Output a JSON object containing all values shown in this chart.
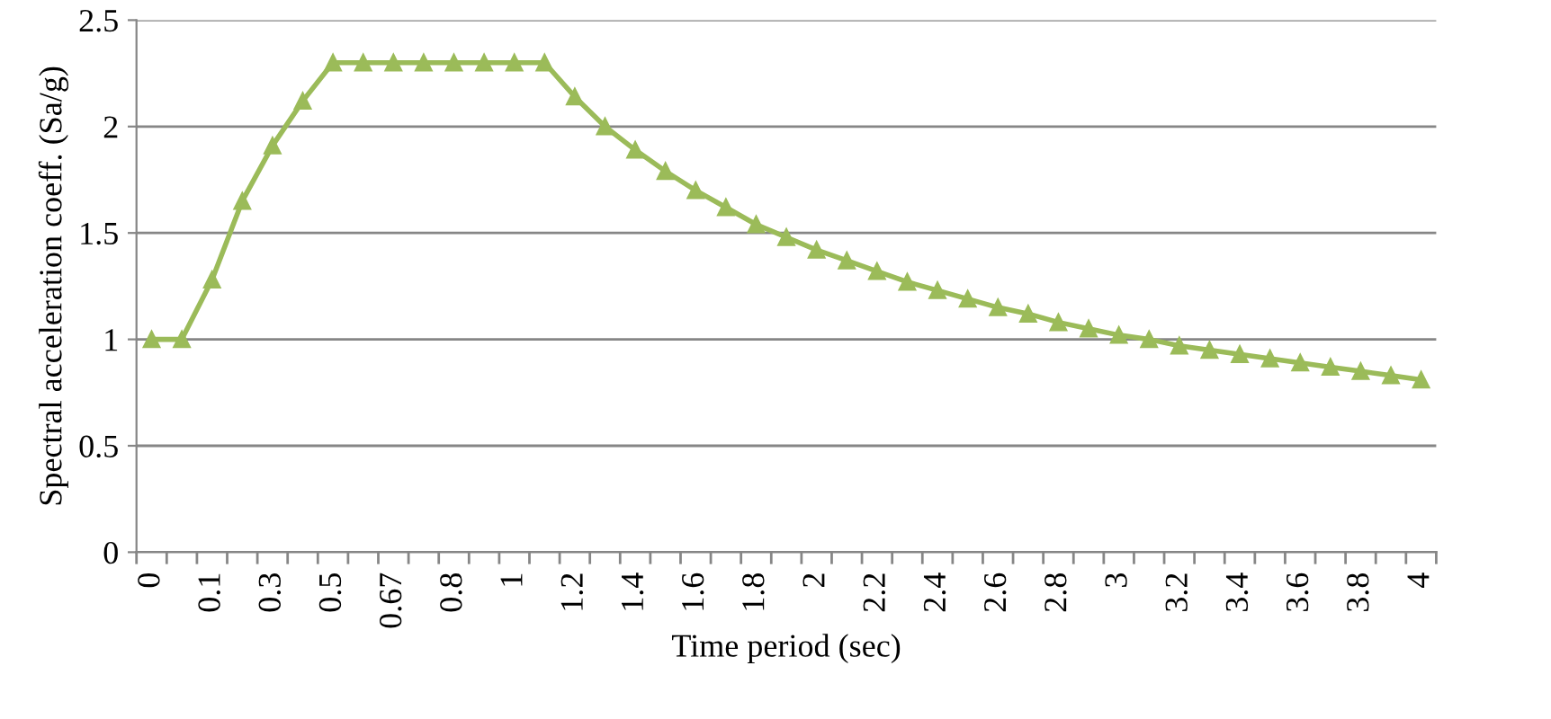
{
  "chart_data": {
    "type": "line",
    "xlabel": "Time period (sec)",
    "ylabel": "Spectral acceleration coeff. (Sa/g)",
    "categories": [
      "0",
      null,
      "0.1",
      null,
      "0.3",
      null,
      "0.5",
      null,
      "0.67",
      null,
      "0.8",
      null,
      "1",
      null,
      "1.2",
      null,
      "1.4",
      null,
      "1.6",
      null,
      "1.8",
      null,
      "2",
      null,
      "2.2",
      null,
      "2.4",
      null,
      "2.6",
      null,
      "2.8",
      null,
      "3",
      null,
      "3.2",
      null,
      "3.4",
      null,
      "3.6",
      null,
      "3.8",
      null,
      "4"
    ],
    "series": [
      {
        "color": "#9bbb59",
        "values": [
          1.0,
          1.0,
          1.28,
          1.65,
          1.91,
          2.12,
          2.3,
          2.3,
          2.3,
          2.3,
          2.3,
          2.3,
          2.3,
          2.3,
          2.14,
          2.0,
          1.89,
          1.79,
          1.7,
          1.62,
          1.54,
          1.48,
          1.42,
          1.37,
          1.32,
          1.27,
          1.23,
          1.19,
          1.15,
          1.12,
          1.08,
          1.05,
          1.02,
          1.0,
          0.97,
          0.95,
          0.93,
          0.91,
          0.89,
          0.87,
          0.85,
          0.83,
          0.81
        ]
      }
    ],
    "ylim": [
      0,
      2.5
    ],
    "yticks": [
      0,
      0.5,
      1,
      1.5,
      2,
      2.5
    ],
    "grid": "y",
    "marker": "triangle",
    "line_style": "solid",
    "legend": false
  }
}
